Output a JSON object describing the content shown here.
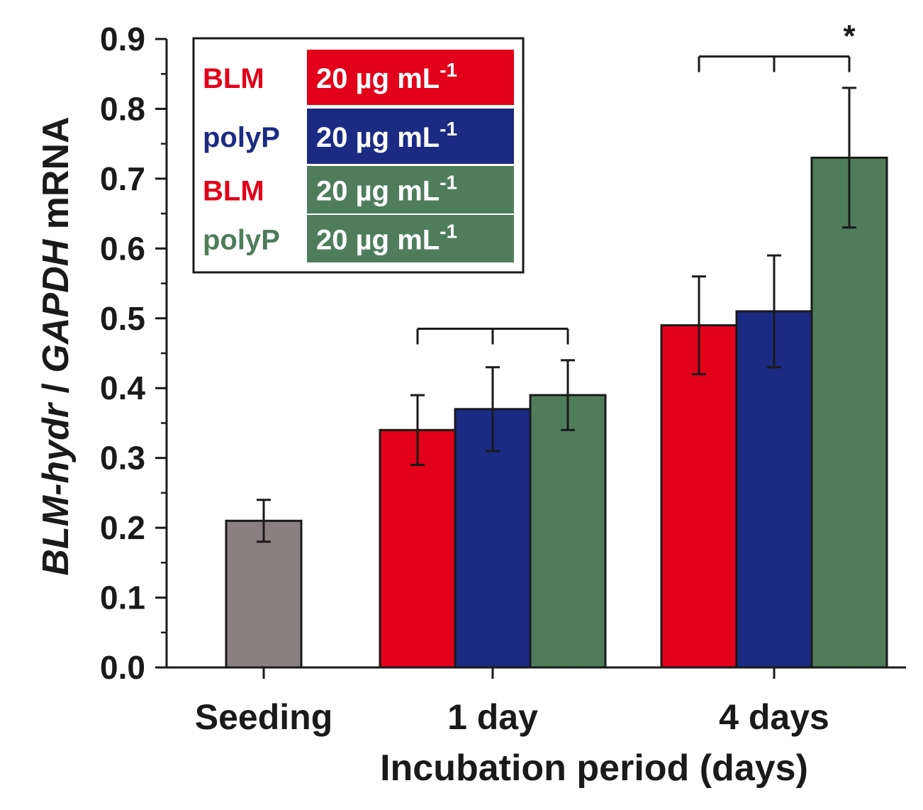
{
  "chart_data": {
    "type": "bar",
    "title": "",
    "xlabel": "Incubation period (days)",
    "ylabel": {
      "part1": "BLM-hydr",
      "sep": " / ",
      "part2": "GAPDH",
      "part3": " mRNA"
    },
    "ylim": [
      0,
      0.9
    ],
    "yticks": [
      "0.0",
      "0.1",
      "0.2",
      "0.3",
      "0.4",
      "0.5",
      "0.6",
      "0.7",
      "0.8",
      "0.9"
    ],
    "categories": [
      "Seeding",
      "1 day",
      "4 days"
    ],
    "groups": [
      {
        "category": "Seeding",
        "bars": [
          {
            "series": "Seeding",
            "value": 0.21,
            "err_low": 0.18,
            "err_high": 0.24,
            "color": "#8b8081"
          }
        ]
      },
      {
        "category": "1 day",
        "bars": [
          {
            "series": "BLM",
            "value": 0.34,
            "err_low": 0.29,
            "err_high": 0.39,
            "color": "#e2001a"
          },
          {
            "series": "polyP",
            "value": 0.37,
            "err_low": 0.31,
            "err_high": 0.43,
            "color": "#1b2b84"
          },
          {
            "series": "BLM + polyP",
            "value": 0.39,
            "err_low": 0.34,
            "err_high": 0.44,
            "color": "#4f7d5c"
          }
        ]
      },
      {
        "category": "4 days",
        "bars": [
          {
            "series": "BLM",
            "value": 0.49,
            "err_low": 0.42,
            "err_high": 0.56,
            "color": "#e2001a"
          },
          {
            "series": "polyP",
            "value": 0.51,
            "err_low": 0.43,
            "err_high": 0.59,
            "color": "#1b2b84"
          },
          {
            "series": "BLM + polyP",
            "value": 0.73,
            "err_low": 0.63,
            "err_high": 0.83,
            "color": "#4f7d5c"
          }
        ]
      }
    ],
    "annotations": [
      {
        "group": "1 day",
        "bracket_y": 0.485,
        "label": ""
      },
      {
        "group": "4 days",
        "bracket_y": 0.875,
        "label": "*"
      }
    ],
    "legend": {
      "position": "top-left",
      "rows": [
        {
          "label": "BLM",
          "label_color": "#e2001a",
          "dose": "20 µg mL",
          "exp": "-1",
          "swatch": "#e2001a"
        },
        {
          "label": "polyP",
          "label_color": "#1b2b84",
          "dose": "20 µg mL",
          "exp": "-1",
          "swatch": "#1b2b84"
        },
        {
          "label": "BLM",
          "label_color": "#e2001a",
          "dose": "20 µg mL",
          "exp": "-1",
          "swatch": "#4f7d5c"
        },
        {
          "label": "polyP",
          "label_color": "#4f7d5c",
          "dose": "20 µg mL",
          "exp": "-1",
          "swatch": "#4f7d5c"
        }
      ]
    }
  }
}
